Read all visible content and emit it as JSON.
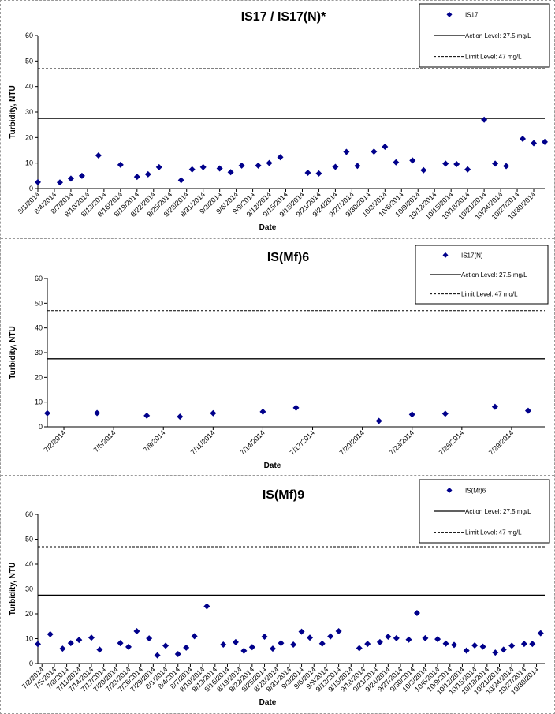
{
  "chart_data": [
    {
      "type": "scatter",
      "title": "IS17 / IS17(N)*",
      "xlabel": "Date",
      "ylabel": "Turbidity, NTU",
      "ylim": [
        0,
        60
      ],
      "yticks": [
        "0",
        "10",
        "20",
        "30",
        "40",
        "50",
        "60"
      ],
      "xlim": [
        "2014-08-01",
        "2014-11-01"
      ],
      "xticks": [
        "8/1/2014",
        "8/4/2014",
        "8/7/2014",
        "8/10/2014",
        "8/13/2014",
        "8/16/2014",
        "8/19/2014",
        "8/22/2014",
        "8/25/2014",
        "8/28/2014",
        "8/31/2014",
        "9/3/2014",
        "9/6/2014",
        "9/9/2014",
        "9/12/2014",
        "9/15/2014",
        "9/18/2014",
        "9/21/2014",
        "9/24/2014",
        "9/27/2014",
        "9/30/2014",
        "10/3/2014",
        "10/6/2014",
        "10/9/2014",
        "10/12/2014",
        "10/15/2014",
        "10/18/2014",
        "10/21/2014",
        "10/24/2014",
        "10/27/2014",
        "10/30/2014"
      ],
      "grid": false,
      "legend_position": "top-right",
      "series": [
        {
          "name": "IS17",
          "color": "#00008b",
          "marker": "diamond",
          "points": [
            [
              "2014-08-01",
              2.5
            ],
            [
              "2014-08-05",
              2.4
            ],
            [
              "2014-08-07",
              3.9
            ],
            [
              "2014-08-09",
              5.0
            ],
            [
              "2014-08-12",
              13.0
            ],
            [
              "2014-08-16",
              9.3
            ],
            [
              "2014-08-19",
              4.6
            ],
            [
              "2014-08-21",
              5.6
            ],
            [
              "2014-08-23",
              8.4
            ],
            [
              "2014-08-27",
              3.3
            ],
            [
              "2014-08-29",
              7.5
            ],
            [
              "2014-08-31",
              8.4
            ],
            [
              "2014-09-03",
              7.9
            ],
            [
              "2014-09-05",
              6.4
            ],
            [
              "2014-09-07",
              9.0
            ],
            [
              "2014-09-10",
              9.0
            ],
            [
              "2014-09-12",
              10.0
            ],
            [
              "2014-09-14",
              12.3
            ],
            [
              "2014-09-19",
              6.2
            ],
            [
              "2014-09-21",
              5.9
            ],
            [
              "2014-09-24",
              8.5
            ],
            [
              "2014-09-26",
              14.4
            ],
            [
              "2014-09-28",
              8.9
            ],
            [
              "2014-10-01",
              14.5
            ],
            [
              "2014-10-03",
              16.4
            ],
            [
              "2014-10-05",
              10.3
            ],
            [
              "2014-10-08",
              11.0
            ],
            [
              "2014-10-10",
              7.2
            ],
            [
              "2014-10-14",
              9.8
            ],
            [
              "2014-10-16",
              9.6
            ],
            [
              "2014-10-18",
              7.5
            ],
            [
              "2014-10-21",
              27.0
            ],
            [
              "2014-10-23",
              9.8
            ],
            [
              "2014-10-25",
              8.8
            ],
            [
              "2014-10-28",
              19.5
            ],
            [
              "2014-10-30",
              17.8
            ],
            [
              "2014-11-01",
              18.3
            ]
          ]
        },
        {
          "name": "Action Level: 27.5 mg/L",
          "type": "hline",
          "y": 27.5,
          "style": "solid"
        },
        {
          "name": "Limit Level: 47 mg/L",
          "type": "hline",
          "y": 47,
          "style": "dashed"
        }
      ]
    },
    {
      "type": "scatter",
      "title": "IS(Mf)6",
      "xlabel": "Date",
      "ylabel": "Turbidity, NTU",
      "ylim": [
        0,
        60
      ],
      "yticks": [
        "0",
        "10",
        "20",
        "30",
        "40",
        "50",
        "60"
      ],
      "xlim": [
        "2014-07-01",
        "2014-07-31"
      ],
      "xticks": [
        "7/2/2014",
        "7/5/2014",
        "7/8/2014",
        "7/11/2014",
        "7/14/2014",
        "7/17/2014",
        "7/20/2014",
        "7/23/2014",
        "7/26/2014",
        "7/29/2014"
      ],
      "grid": false,
      "legend_position": "top-right",
      "series": [
        {
          "name": "IS17(N)",
          "color": "#00008b",
          "marker": "diamond",
          "points": [
            [
              "2014-07-01",
              5.5
            ],
            [
              "2014-07-04",
              5.6
            ],
            [
              "2014-07-07",
              4.5
            ],
            [
              "2014-07-09",
              4.1
            ],
            [
              "2014-07-11",
              5.5
            ],
            [
              "2014-07-14",
              6.1
            ],
            [
              "2014-07-16",
              7.7
            ],
            [
              "2014-07-21",
              2.4
            ],
            [
              "2014-07-23",
              5.0
            ],
            [
              "2014-07-25",
              5.3
            ],
            [
              "2014-07-28",
              8.1
            ],
            [
              "2014-07-30",
              6.5
            ]
          ]
        },
        {
          "name": "Action Level: 27.5 mg/L",
          "type": "hline",
          "y": 27.5,
          "style": "solid"
        },
        {
          "name": "Limit Level: 47 mg/L",
          "type": "hline",
          "y": 47,
          "style": "dashed"
        }
      ]
    },
    {
      "type": "scatter",
      "title": "IS(Mf)9",
      "xlabel": "Date",
      "ylabel": "Turbidity, NTU",
      "ylim": [
        0,
        60
      ],
      "yticks": [
        "0",
        "10",
        "20",
        "30",
        "40",
        "50",
        "60"
      ],
      "xlim": [
        "2014-07-01",
        "2014-11-01"
      ],
      "xticks": [
        "7/2/2014",
        "7/5/2014",
        "7/8/2014",
        "7/11/2014",
        "7/14/2014",
        "7/17/2014",
        "7/20/2014",
        "7/23/2014",
        "7/26/2014",
        "7/29/2014",
        "8/1/2014",
        "8/4/2014",
        "8/7/2014",
        "8/10/2014",
        "8/13/2014",
        "8/16/2014",
        "8/19/2014",
        "8/22/2014",
        "8/25/2014",
        "8/28/2014",
        "8/31/2014",
        "9/3/2014",
        "9/6/2014",
        "9/9/2014",
        "9/12/2014",
        "9/15/2014",
        "9/18/2014",
        "9/21/2014",
        "9/24/2014",
        "9/27/2014",
        "9/30/2014",
        "10/3/2014",
        "10/6/2014",
        "10/9/2014",
        "10/12/2014",
        "10/15/2014",
        "10/18/2014",
        "10/21/2014",
        "10/24/2014",
        "10/27/2014",
        "10/30/2014"
      ],
      "grid": false,
      "legend_position": "top-right",
      "series": [
        {
          "name": "IS(Mf)6",
          "color": "#00008b",
          "marker": "diamond",
          "points": [
            [
              "2014-07-01",
              7.8
            ],
            [
              "2014-07-04",
              11.8
            ],
            [
              "2014-07-07",
              6.0
            ],
            [
              "2014-07-09",
              8.2
            ],
            [
              "2014-07-11",
              9.5
            ],
            [
              "2014-07-14",
              10.4
            ],
            [
              "2014-07-16",
              5.6
            ],
            [
              "2014-07-21",
              8.2
            ],
            [
              "2014-07-23",
              6.7
            ],
            [
              "2014-07-25",
              13.0
            ],
            [
              "2014-07-28",
              10.1
            ],
            [
              "2014-07-30",
              3.3
            ],
            [
              "2014-08-01",
              7.2
            ],
            [
              "2014-08-04",
              3.8
            ],
            [
              "2014-08-06",
              6.4
            ],
            [
              "2014-08-08",
              11.0
            ],
            [
              "2014-08-11",
              23.0
            ],
            [
              "2014-08-15",
              7.6
            ],
            [
              "2014-08-18",
              8.6
            ],
            [
              "2014-08-20",
              5.1
            ],
            [
              "2014-08-22",
              6.6
            ],
            [
              "2014-08-25",
              10.8
            ],
            [
              "2014-08-27",
              6.0
            ],
            [
              "2014-08-29",
              8.2
            ],
            [
              "2014-09-01",
              7.6
            ],
            [
              "2014-09-03",
              12.8
            ],
            [
              "2014-09-05",
              10.4
            ],
            [
              "2014-09-08",
              8.0
            ],
            [
              "2014-09-10",
              10.9
            ],
            [
              "2014-09-12",
              13.0
            ],
            [
              "2014-09-17",
              6.2
            ],
            [
              "2014-09-19",
              7.9
            ],
            [
              "2014-09-22",
              8.6
            ],
            [
              "2014-09-24",
              10.8
            ],
            [
              "2014-09-26",
              10.2
            ],
            [
              "2014-09-29",
              9.6
            ],
            [
              "2014-10-01",
              20.3
            ],
            [
              "2014-10-03",
              10.2
            ],
            [
              "2014-10-06",
              9.8
            ],
            [
              "2014-10-08",
              8.0
            ],
            [
              "2014-10-10",
              7.5
            ],
            [
              "2014-10-13",
              5.2
            ],
            [
              "2014-10-15",
              7.3
            ],
            [
              "2014-10-17",
              6.8
            ],
            [
              "2014-10-20",
              4.4
            ],
            [
              "2014-10-22",
              5.6
            ],
            [
              "2014-10-24",
              7.2
            ],
            [
              "2014-10-27",
              7.9
            ],
            [
              "2014-10-29",
              7.9
            ],
            [
              "2014-10-31",
              12.2
            ]
          ]
        },
        {
          "name": "Action Level: 27.5 mg/L",
          "type": "hline",
          "y": 27.5,
          "style": "solid"
        },
        {
          "name": "Limit Level: 47 mg/L",
          "type": "hline",
          "y": 47,
          "style": "dashed"
        }
      ]
    }
  ]
}
